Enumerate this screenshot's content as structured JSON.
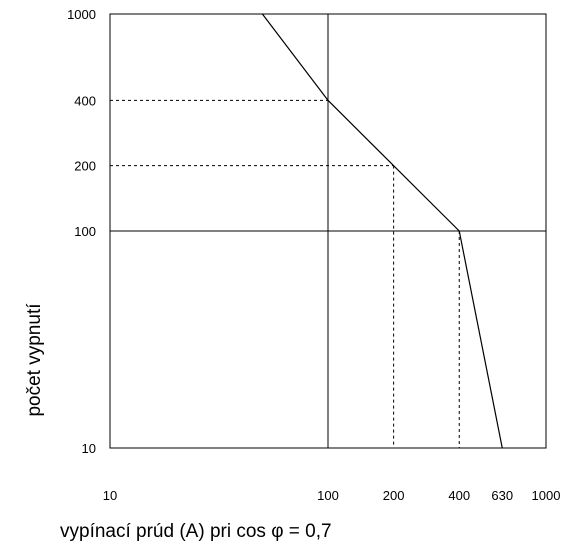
{
  "chart_data": {
    "type": "line",
    "title": "",
    "xlabel": "vypínací prúd (A) pri cos φ = 0,7",
    "ylabel": "počet vypnutí",
    "x_scale": "log",
    "y_scale": "log",
    "xlim": [
      10,
      1000
    ],
    "ylim": [
      10,
      1000
    ],
    "x_ticks": [
      "10",
      "100",
      "200",
      "400",
      "630",
      "1000"
    ],
    "y_ticks": [
      "10",
      "100",
      "200",
      "400",
      "1000"
    ],
    "grid": {
      "x_solid": [
        100
      ],
      "y_solid": [
        100
      ]
    },
    "series": [
      {
        "values": [
          {
            "x": 50,
            "y": 1000
          },
          {
            "x": 100,
            "y": 400
          },
          {
            "x": 200,
            "y": 200
          },
          {
            "x": 400,
            "y": 100
          },
          {
            "x": 630,
            "y": 10
          }
        ]
      }
    ],
    "reference_lines": [
      {
        "x": 100,
        "y": 400
      },
      {
        "x": 200,
        "y": 200
      },
      {
        "x": 400,
        "y": 100
      }
    ]
  }
}
